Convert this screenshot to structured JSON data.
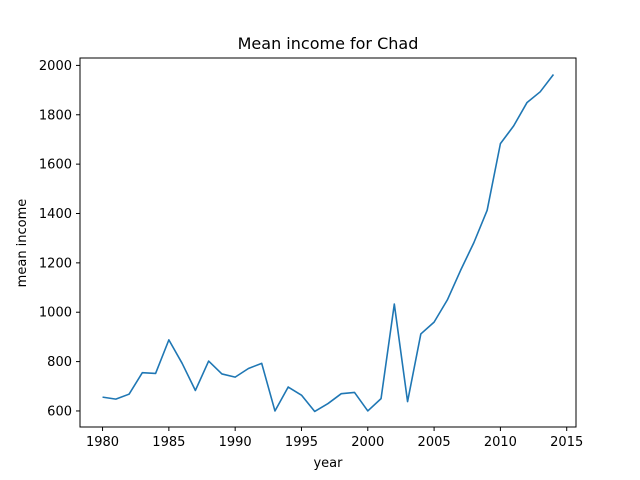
{
  "chart_data": {
    "type": "line",
    "title": "Mean income for Chad",
    "xlabel": "year",
    "ylabel": "mean income",
    "xlim": [
      1978.3,
      2015.7
    ],
    "ylim": [
      535,
      2030
    ],
    "xticks": [
      1980,
      1985,
      1990,
      1995,
      2000,
      2005,
      2010,
      2015
    ],
    "yticks": [
      600,
      800,
      1000,
      1200,
      1400,
      1600,
      1800,
      2000
    ],
    "grid": false,
    "color": "#1f77b4",
    "series": [
      {
        "x": [
          1980,
          1981,
          1982,
          1983,
          1984,
          1985,
          1986,
          1987,
          1988,
          1989,
          1990,
          1991,
          1992,
          1993,
          1994,
          1995,
          1996,
          1997,
          1998,
          1999,
          2000,
          2001,
          2002,
          2003,
          2004,
          2005,
          2006,
          2007,
          2008,
          2009,
          2010,
          2011,
          2012,
          2013,
          2014
        ],
        "y": [
          656,
          648,
          668,
          755,
          752,
          888,
          793,
          683,
          802,
          750,
          737,
          772,
          793,
          600,
          697,
          664,
          598,
          630,
          670,
          675,
          600,
          650,
          1033,
          638,
          912,
          960,
          1050,
          1170,
          1282,
          1413,
          1683,
          1755,
          1849,
          1893,
          1963
        ]
      }
    ]
  }
}
